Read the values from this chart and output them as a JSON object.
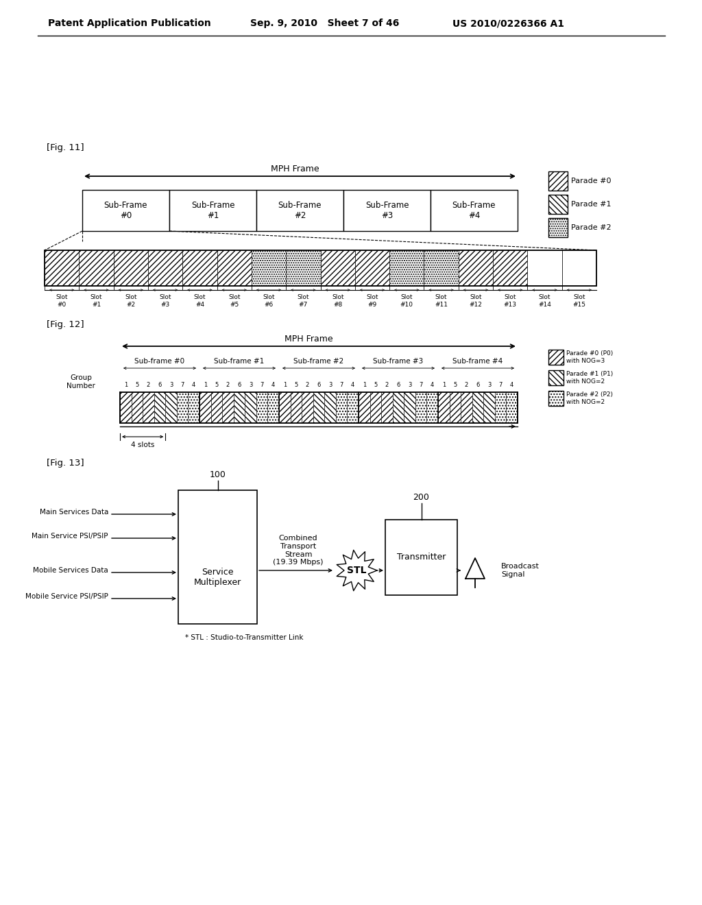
{
  "bg_color": "#ffffff",
  "header_left": "Patent Application Publication",
  "header_mid": "Sep. 9, 2010   Sheet 7 of 46",
  "header_right": "US 2010/0226366 A1",
  "fig11_label": "[Fig. 11]",
  "fig12_label": "[Fig. 12]",
  "fig13_label": "[Fig. 13]",
  "mph_frame_label": "MPH Frame",
  "subframes": [
    "Sub-Frame\n#0",
    "Sub-Frame\n#1",
    "Sub-Frame\n#2",
    "Sub-Frame\n#3",
    "Sub-Frame\n#4"
  ],
  "slots": [
    "Slot\n#0",
    "Slot\n#1",
    "Slot\n#2",
    "Slot\n#3",
    "Slot\n#4",
    "Slot\n#5",
    "Slot\n#6",
    "Slot\n#7",
    "Slot\n#8",
    "Slot\n#9",
    "Slot\n#10",
    "Slot\n#11",
    "Slot\n#12",
    "Slot\n#13",
    "Slot\n#14",
    "Slot\n#15"
  ],
  "parade_labels": [
    "Parade #0",
    "Parade #1",
    "Parade #2"
  ],
  "fig12_parade_labels": [
    "Parade #0 (P0)\nwith NOG=3",
    "Parade #1 (P1)\nwith NOG=2",
    "Parade #2 (P2)\nwith NOG=2"
  ],
  "fig12_subframes": [
    "Sub-frame #0",
    "Sub-frame #1",
    "Sub-frame #2",
    "Sub-frame #3",
    "Sub-frame #4"
  ],
  "fig12_groups": [
    "1",
    "5",
    "2",
    "6",
    "3",
    "7",
    "4"
  ],
  "fig12_4slots": "4 slots",
  "fig13_inputs_left": [
    "Main Services Data",
    "Main Service PSI/PSIP",
    "Mobile Services Data",
    "Mobile Service PSI/PSIP"
  ],
  "fig13_box1_label": "Service\nMultiplexer",
  "fig13_box1_num": "100",
  "fig13_stream_label": "Combined\nTransport\nStream\n(19.39 Mbps)",
  "fig13_stl_label": "STL",
  "fig13_stl_note": "* STL : Studio-to-Transmitter Link",
  "fig13_box2_label": "Transmitter",
  "fig13_box2_num": "200",
  "fig13_antenna_label": "Broadcast\nSignal"
}
